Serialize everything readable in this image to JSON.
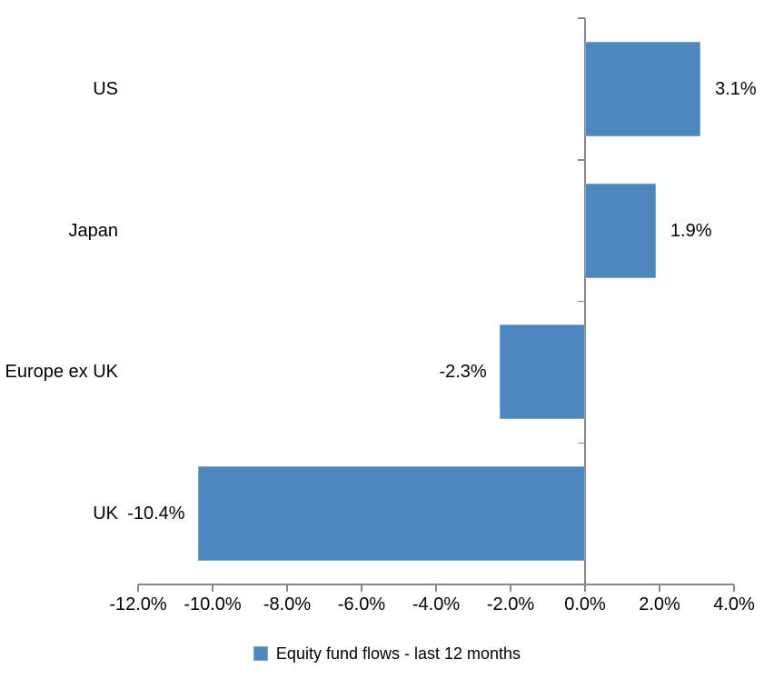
{
  "chart_data": {
    "type": "bar",
    "orientation": "horizontal",
    "title": "",
    "categories": [
      "US",
      "Japan",
      "Europe ex UK",
      "UK"
    ],
    "series": [
      {
        "name": "Equity fund flows - last 12 months",
        "values": [
          3.1,
          1.9,
          -2.3,
          -10.4
        ],
        "value_labels": [
          "3.1%",
          "1.9%",
          "-2.3%",
          "-10.4%"
        ]
      }
    ],
    "xlabel": "",
    "ylabel": "",
    "xlim": [
      -12,
      4
    ],
    "x_tick_values": [
      -12,
      -10,
      -8,
      -6,
      -4,
      -2,
      0,
      2,
      4
    ],
    "x_tick_labels": [
      "-12.0%",
      "-10.0%",
      "-8.0%",
      "-6.0%",
      "-4.0%",
      "-2.0%",
      "0.0%",
      "2.0%",
      "4.0%"
    ],
    "grid": "off",
    "legend": {
      "position": "bottom",
      "entries": [
        "Equity fund flows - last 12 months"
      ]
    },
    "colors": {
      "bar_fill": "#4E87BE",
      "bar_border": "#7FA8CF",
      "axis": "#898989",
      "text": "#000000",
      "background": "#FFFFFF"
    }
  }
}
